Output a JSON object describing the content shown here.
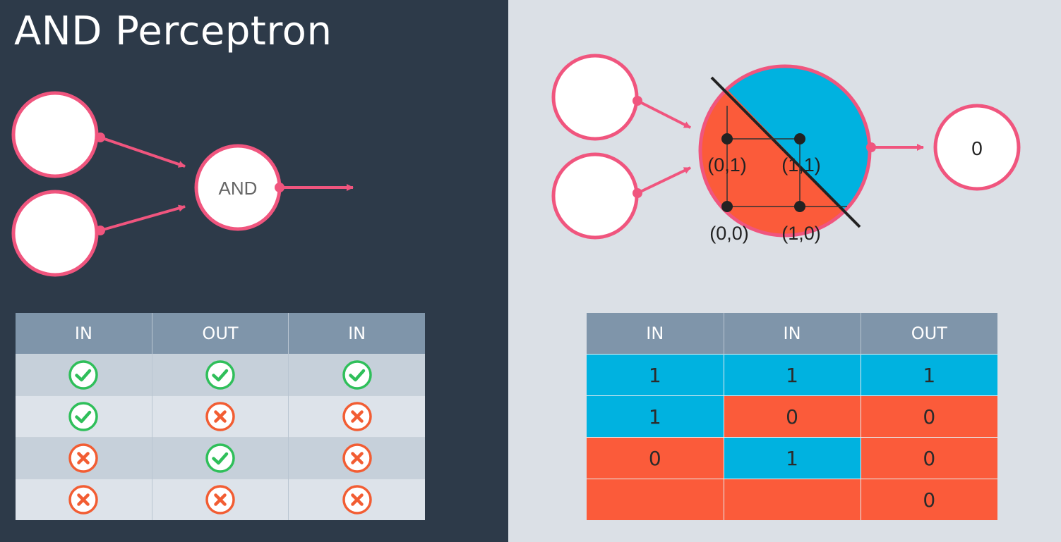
{
  "title": "AND Perceptron",
  "left": {
    "node_label": "AND",
    "table": {
      "headers": [
        "IN",
        "OUT",
        "IN"
      ],
      "rows": [
        [
          "check",
          "check",
          "check"
        ],
        [
          "check",
          "cross",
          "cross"
        ],
        [
          "cross",
          "check",
          "cross"
        ],
        [
          "cross",
          "cross",
          "cross"
        ]
      ]
    }
  },
  "right": {
    "output_value": "0",
    "points": [
      {
        "label": "(0,1)"
      },
      {
        "label": "(1,1)"
      },
      {
        "label": "(0,0)"
      },
      {
        "label": "(1,0)"
      }
    ],
    "table": {
      "headers": [
        "IN",
        "IN",
        "OUT"
      ],
      "rows": [
        {
          "cells": [
            "1",
            "1",
            "1"
          ],
          "colors": [
            "blue",
            "blue",
            "blue"
          ]
        },
        {
          "cells": [
            "1",
            "0",
            "0"
          ],
          "colors": [
            "blue",
            "red",
            "red"
          ]
        },
        {
          "cells": [
            "0",
            "1",
            "0"
          ],
          "colors": [
            "red",
            "blue",
            "red"
          ]
        },
        {
          "cells": [
            "",
            "",
            "0"
          ],
          "colors": [
            "red",
            "red",
            "red"
          ]
        }
      ]
    }
  },
  "colors": {
    "left_bg": "#2d3a49",
    "right_bg": "#dbe0e6",
    "pink": "#f0557e",
    "blue": "#00b2e0",
    "red": "#fb5b3a",
    "check": "#2fbf5a",
    "cross": "#f25d33"
  }
}
